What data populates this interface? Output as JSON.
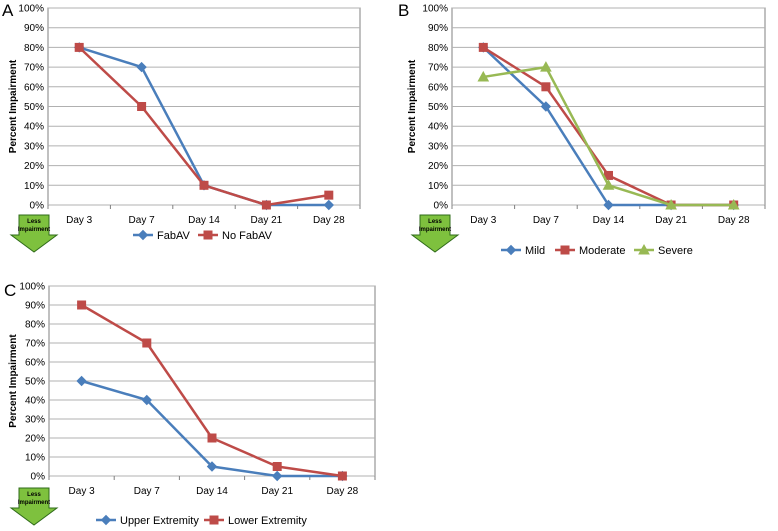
{
  "chart_data": [
    {
      "panel": "A",
      "type": "line",
      "categories": [
        "Day 3",
        "Day 7",
        "Day 14",
        "Day 21",
        "Day 28"
      ],
      "series": [
        {
          "name": "FabAV",
          "values": [
            80,
            70,
            10,
            0,
            0
          ],
          "color": "#4a7ebb",
          "marker": "diamond"
        },
        {
          "name": "No FabAV",
          "values": [
            80,
            50,
            10,
            0,
            5
          ],
          "color": "#be4b48",
          "marker": "square"
        }
      ],
      "ylabel": "Percent Impairment",
      "ylim": [
        0,
        100
      ],
      "ytick_labels": [
        "0%",
        "10%",
        "20%",
        "30%",
        "40%",
        "50%",
        "60%",
        "70%",
        "80%",
        "90%",
        "100%"
      ],
      "annotation": "Less Impairment"
    },
    {
      "panel": "B",
      "type": "line",
      "categories": [
        "Day 3",
        "Day 7",
        "Day 14",
        "Day 21",
        "Day 28"
      ],
      "series": [
        {
          "name": "Mild",
          "values": [
            80,
            50,
            0,
            0,
            0
          ],
          "color": "#4a7ebb",
          "marker": "diamond"
        },
        {
          "name": "Moderate",
          "values": [
            80,
            60,
            15,
            0,
            0
          ],
          "color": "#be4b48",
          "marker": "square"
        },
        {
          "name": "Severe",
          "values": [
            65,
            70,
            10,
            0,
            0
          ],
          "color": "#98b954",
          "marker": "triangle"
        }
      ],
      "ylabel": "Percent Impairment",
      "ylim": [
        0,
        100
      ],
      "ytick_labels": [
        "0%",
        "10%",
        "20%",
        "30%",
        "40%",
        "50%",
        "60%",
        "70%",
        "80%",
        "90%",
        "100%"
      ],
      "annotation": "Less Impairment"
    },
    {
      "panel": "C",
      "type": "line",
      "categories": [
        "Day 3",
        "Day 7",
        "Day 14",
        "Day 21",
        "Day 28"
      ],
      "series": [
        {
          "name": "Upper Extremity",
          "values": [
            50,
            40,
            5,
            0,
            0
          ],
          "color": "#4a7ebb",
          "marker": "diamond"
        },
        {
          "name": "Lower Extremity",
          "values": [
            90,
            70,
            20,
            5,
            0
          ],
          "color": "#be4b48",
          "marker": "square"
        }
      ],
      "ylabel": "Percent Impairment",
      "ylim": [
        0,
        100
      ],
      "ytick_labels": [
        "0%",
        "10%",
        "20%",
        "30%",
        "40%",
        "50%",
        "60%",
        "70%",
        "80%",
        "90%",
        "100%"
      ],
      "annotation": "Less Impairment"
    }
  ],
  "colors": {
    "grid": "#b0b0b0",
    "axis": "#808080",
    "arrow_fill": "#7ec13e",
    "arrow_stroke": "#2f6b1a"
  }
}
